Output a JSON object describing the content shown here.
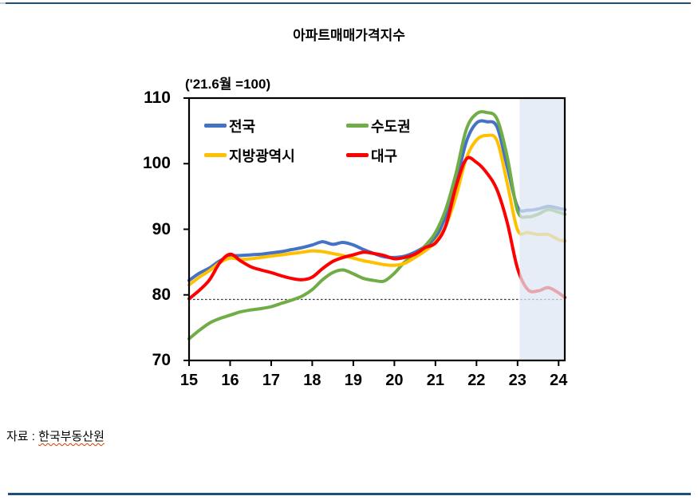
{
  "page": {
    "source_prefix": "자료 : ",
    "source_link": "한국부동산원",
    "divider_color": "#1F4E79"
  },
  "chart_data": {
    "type": "line",
    "title": "아파트매매가격지수",
    "subtitle": "('21.6월 =100)",
    "xlim": [
      15,
      24.15
    ],
    "ylim": [
      70,
      110
    ],
    "x_ticks": [
      15,
      16,
      17,
      18,
      19,
      20,
      21,
      22,
      23,
      24
    ],
    "y_ticks": [
      70,
      80,
      90,
      100,
      110
    ],
    "grid": false,
    "legend_position": "top-left-inside",
    "reference_line": 79.3,
    "shaded_region": {
      "from": 23.05,
      "to": 24.15,
      "color": "#DCE6F2",
      "opacity": 0.72
    },
    "x": [
      15,
      15.25,
      15.5,
      15.75,
      16,
      16.25,
      16.5,
      16.75,
      17,
      17.25,
      17.5,
      17.75,
      18,
      18.25,
      18.5,
      18.75,
      19,
      19.25,
      19.5,
      19.75,
      20,
      20.25,
      20.5,
      20.75,
      21,
      21.25,
      21.5,
      21.75,
      22,
      22.25,
      22.5,
      22.75,
      23,
      23.25,
      23.5,
      23.75,
      24,
      24.15
    ],
    "series": [
      {
        "name": "전국",
        "color": "#4472C4",
        "values": [
          82.2,
          83.3,
          84.1,
          85.2,
          85.9,
          86.0,
          86.1,
          86.2,
          86.4,
          86.6,
          86.9,
          87.2,
          87.6,
          88.1,
          87.7,
          88.0,
          87.6,
          86.9,
          86.3,
          85.8,
          85.7,
          85.9,
          86.5,
          87.4,
          88.7,
          92.0,
          97.0,
          103.3,
          106.2,
          106.4,
          105.6,
          99.5,
          93.4,
          92.9,
          93.1,
          93.5,
          93.2,
          93.0
        ]
      },
      {
        "name": "수도권",
        "color": "#70AD47",
        "values": [
          73.3,
          74.6,
          75.7,
          76.4,
          76.9,
          77.4,
          77.7,
          77.9,
          78.2,
          78.7,
          79.2,
          79.8,
          80.8,
          82.3,
          83.4,
          83.8,
          83.2,
          82.5,
          82.2,
          82.1,
          83.3,
          85.0,
          86.1,
          87.5,
          89.5,
          93.0,
          98.5,
          105.2,
          107.6,
          107.8,
          106.8,
          101.0,
          92.8,
          91.9,
          92.3,
          93.0,
          92.6,
          92.3
        ]
      },
      {
        "name": "지방광역시",
        "color": "#FFC000",
        "values": [
          81.5,
          82.7,
          83.7,
          84.9,
          85.6,
          85.4,
          85.5,
          85.7,
          85.9,
          86.1,
          86.3,
          86.5,
          86.7,
          86.6,
          86.3,
          86.0,
          85.6,
          85.2,
          84.9,
          84.6,
          84.5,
          84.8,
          85.7,
          86.7,
          88.1,
          90.5,
          95.0,
          100.8,
          103.6,
          104.3,
          103.5,
          97.0,
          89.9,
          89.5,
          89.2,
          89.2,
          88.4,
          88.2
        ]
      },
      {
        "name": "대구",
        "color": "#FF0000",
        "values": [
          79.4,
          80.7,
          82.3,
          84.9,
          86.2,
          85.2,
          84.3,
          83.8,
          83.4,
          82.9,
          82.5,
          82.3,
          82.7,
          84.0,
          85.1,
          85.7,
          86.1,
          86.5,
          86.3,
          86.0,
          85.5,
          85.7,
          86.2,
          87.2,
          87.9,
          90.5,
          96.5,
          100.7,
          100.2,
          98.6,
          96.0,
          91.0,
          84.0,
          80.8,
          80.6,
          81.1,
          80.3,
          79.6
        ]
      }
    ]
  }
}
